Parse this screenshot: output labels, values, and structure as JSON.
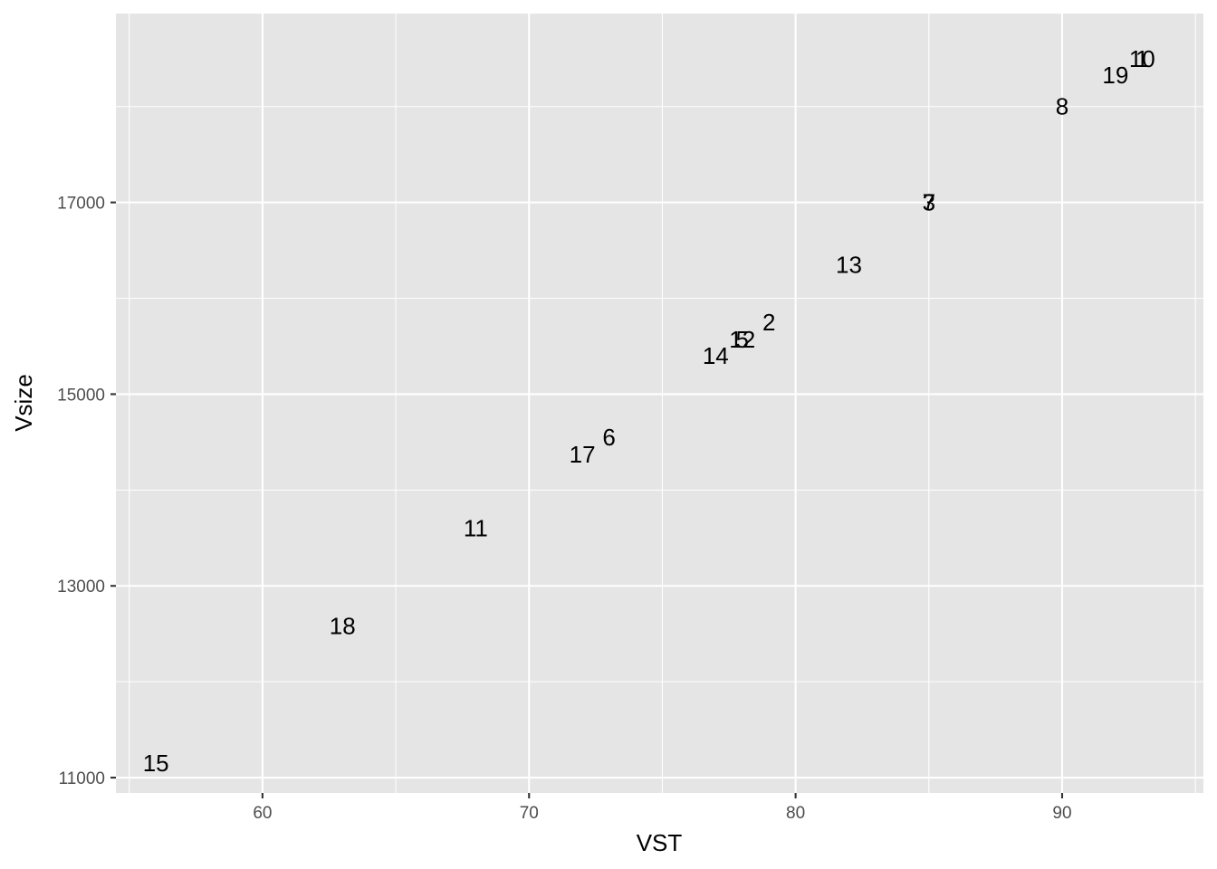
{
  "chart_data": {
    "type": "scatter",
    "marker": "text-label",
    "xlabel": "VST",
    "ylabel": "Vsize",
    "xlim": [
      54.5,
      95.3
    ],
    "ylim": [
      10840,
      18970
    ],
    "x_ticks": [
      60,
      70,
      80,
      90
    ],
    "y_ticks": [
      11000,
      13000,
      15000,
      17000
    ],
    "x_tick_labels": [
      "60",
      "70",
      "80",
      "90"
    ],
    "y_tick_labels": [
      "11000",
      "13000",
      "15000",
      "17000"
    ],
    "grid": true,
    "legend": "none",
    "points": [
      {
        "label": "1",
        "x": 93.0,
        "y": 18500
      },
      {
        "label": "2",
        "x": 79.0,
        "y": 15750
      },
      {
        "label": "3",
        "x": 85.0,
        "y": 17000
      },
      {
        "label": "5",
        "x": 78.0,
        "y": 15570
      },
      {
        "label": "6",
        "x": 73.0,
        "y": 14550
      },
      {
        "label": "7",
        "x": 85.0,
        "y": 17000
      },
      {
        "label": "8",
        "x": 90.0,
        "y": 18000
      },
      {
        "label": "10",
        "x": 93.0,
        "y": 18500
      },
      {
        "label": "11",
        "x": 68.0,
        "y": 13600
      },
      {
        "label": "12",
        "x": 78.0,
        "y": 15570
      },
      {
        "label": "13",
        "x": 82.0,
        "y": 16350
      },
      {
        "label": "14",
        "x": 77.0,
        "y": 15400
      },
      {
        "label": "15",
        "x": 56.0,
        "y": 11150
      },
      {
        "label": "17",
        "x": 72.0,
        "y": 14370
      },
      {
        "label": "18",
        "x": 63.0,
        "y": 12580
      },
      {
        "label": "19",
        "x": 92.0,
        "y": 18330
      }
    ]
  }
}
